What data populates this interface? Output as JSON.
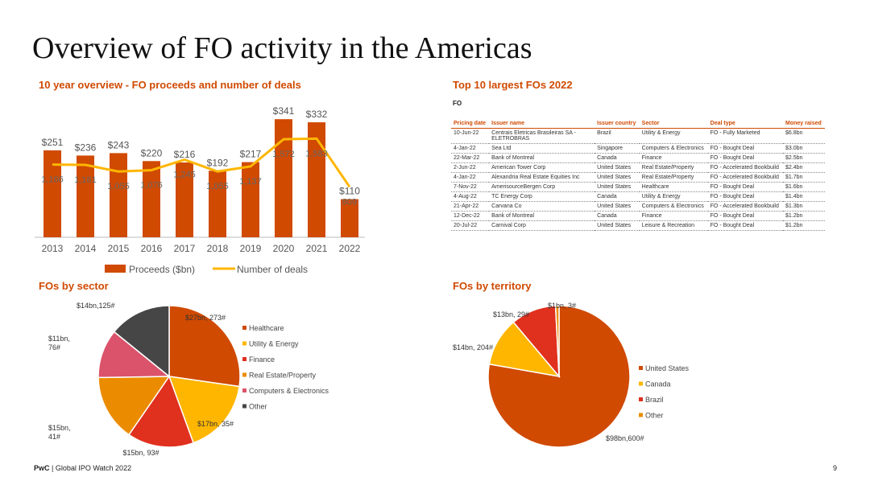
{
  "page": {
    "title": "Overview of FO activity in the Americas",
    "footer_brand": "PwC",
    "footer_sep": " | ",
    "footer_text": "Global IPO Watch 2022",
    "page_number": "9"
  },
  "colors": {
    "accent": "#d04a02",
    "bar": "#d04a02",
    "line": "#ffb600",
    "healthcare": "#d04a02",
    "utility": "#ffb600",
    "finance": "#e0301e",
    "real_estate": "#eb8c00",
    "computers": "#db536a",
    "other_sector": "#464646",
    "us": "#d04a02",
    "canada": "#ffb600",
    "brazil": "#e0301e",
    "other_territory": "#eb8c00"
  },
  "sections": {
    "overview_title": "10 year overview - FO proceeds and number of deals",
    "top10_title": "Top 10 largest FOs 2022",
    "top10_subtitle": "FO",
    "sector_title": "FOs by sector",
    "territory_title": "FOs by territory"
  },
  "top10": {
    "headers": [
      "Pricing date",
      "Issuer name",
      "Issuer country",
      "Sector",
      "Deal type",
      "Money raised"
    ],
    "rows": [
      [
        "10-Jun-22",
        "Centrais Eletricas Brasileiras SA - ELETROBRAS",
        "Brazil",
        "Utility & Energy",
        "FO - Fully Marketed",
        "$6.8bn"
      ],
      [
        "4-Jan-22",
        "Sea Ltd",
        "Singapore",
        "Computers & Electronics",
        "FO - Bought Deal",
        "$3.0bn"
      ],
      [
        "22-Mar-22",
        "Bank of Montreal",
        "Canada",
        "Finance",
        "FO - Bought Deal",
        "$2.5bn"
      ],
      [
        "2-Jun-22",
        "American Tower Corp",
        "United States",
        "Real Estate/Property",
        "FO - Accelerated Bookbuild",
        "$2.4bn"
      ],
      [
        "4-Jan-22",
        "Alexandria Real Estate Equities Inc",
        "United States",
        "Real Estate/Property",
        "FO - Accelerated Bookbuild",
        "$1.7bn"
      ],
      [
        "7-Nov-22",
        "AmerisourceBergen Corp",
        "United States",
        "Healthcare",
        "FO - Bought Deal",
        "$1.6bn"
      ],
      [
        "4-Aug-22",
        "TC Energy Corp",
        "Canada",
        "Utility & Energy",
        "FO - Bought Deal",
        "$1.4bn"
      ],
      [
        "21-Apr-22",
        "Carvana Co",
        "United States",
        "Computers & Electronics",
        "FO - Accelerated Bookbuild",
        "$1.3bn"
      ],
      [
        "12-Dec-22",
        "Bank of Montreal",
        "Canada",
        "Finance",
        "FO - Bought Deal",
        "$1.2bn"
      ],
      [
        "20-Jul-22",
        "Carnival Corp",
        "United States",
        "Leisure & Recreation",
        "FO - Bought Deal",
        "$1.2bn"
      ]
    ]
  },
  "chart_data": [
    {
      "type": "bar",
      "title": "10 year overview - FO proceeds and number of deals",
      "categories": [
        "2013",
        "2014",
        "2015",
        "2016",
        "2017",
        "2018",
        "2019",
        "2020",
        "2021",
        "2022"
      ],
      "series": [
        {
          "name": "Proceeds ($bn)",
          "type": "bar",
          "values": [
            251,
            236,
            243,
            220,
            216,
            192,
            217,
            341,
            332,
            110
          ],
          "labels": [
            "$251",
            "$236",
            "$243",
            "$220",
            "$216",
            "$192",
            "$217",
            "$341",
            "$332",
            "$110"
          ]
        },
        {
          "name": "Number of deals",
          "type": "line",
          "values": [
            1166,
            1161,
            1055,
            1076,
            1245,
            1055,
            1137,
            1572,
            1583,
            809
          ],
          "labels": [
            "1,166",
            "1,161",
            "1,055",
            "1,076",
            "1,245",
            "1,055",
            "1,137",
            "1,572",
            "1,583",
            "809"
          ]
        }
      ],
      "ylim": [
        0,
        360
      ],
      "y2lim": [
        0,
        2000
      ],
      "legend": "bottom"
    },
    {
      "type": "pie",
      "title": "FOs by sector",
      "labels": [
        "Healthcare",
        "Utility & Energy",
        "Finance",
        "Real Estate/Property",
        "Computers & Electronics",
        "Other"
      ],
      "values": [
        27,
        17,
        15,
        15,
        11,
        14
      ],
      "deals": [
        273,
        35,
        93,
        41,
        76,
        125
      ],
      "slice_labels": [
        "$27bn, 273#",
        "$17bn, 35#",
        "$15bn, 93#",
        "$15bn,\n41#",
        "$11bn,\n76#",
        "$14bn,125#"
      ],
      "legend": "right"
    },
    {
      "type": "pie",
      "title": "FOs by territory",
      "labels": [
        "United States",
        "Canada",
        "Brazil",
        "Other"
      ],
      "values": [
        98,
        14,
        13,
        1
      ],
      "deals": [
        600,
        204,
        29,
        3
      ],
      "slice_labels": [
        "$98bn,600#",
        "$14bn, 204#",
        "$13bn, 29#",
        "$1bn, 3#"
      ],
      "legend": "right"
    }
  ]
}
